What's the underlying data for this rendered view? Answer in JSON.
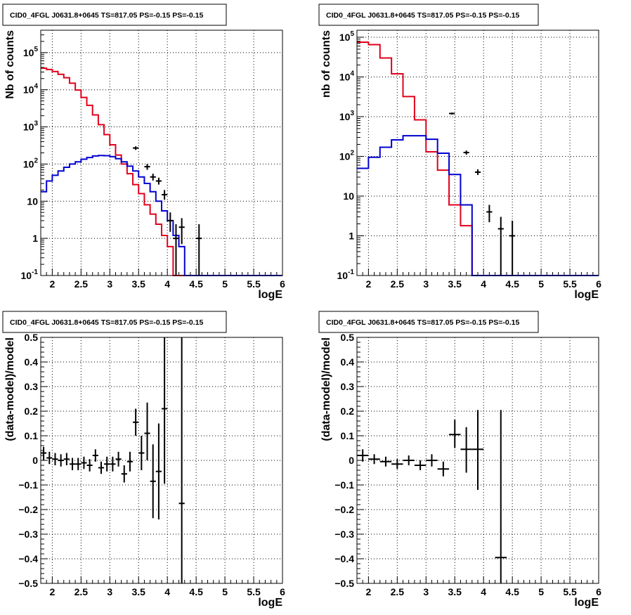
{
  "chart_data": [
    {
      "type": "line",
      "title": "CID0_4FGL J0631.8+0645 TS=817.05 PS=-0.15 PS=-0.15",
      "xlabel": "logE",
      "ylabel": "Nb of counts",
      "xlim": [
        1.8,
        6.0
      ],
      "ylim": [
        0.1,
        400000
      ],
      "yscale": "log",
      "grid": true,
      "x_ticks": [
        "2",
        "2.5",
        "3",
        "3.5",
        "4",
        "4.5",
        "5",
        "5.5",
        "6"
      ],
      "y_ticks": [
        "10^{-1}",
        "1",
        "10",
        "10^{2}",
        "10^{3}",
        "10^{4}",
        "10^{5}"
      ],
      "bin_edges": [
        1.8,
        1.9,
        2.0,
        2.1,
        2.2,
        2.3,
        2.4,
        2.5,
        2.6,
        2.7,
        2.8,
        2.9,
        3.0,
        3.1,
        3.2,
        3.3,
        3.4,
        3.5,
        3.6,
        3.7,
        3.8,
        3.9,
        4.0,
        4.1,
        4.2,
        4.3,
        4.4,
        4.5,
        4.6,
        4.7,
        4.8,
        4.9,
        5.0,
        5.1,
        5.2,
        5.3,
        5.4,
        5.5,
        5.6,
        5.7,
        5.8,
        5.9,
        6.0
      ],
      "series": [
        {
          "color": "#e0001b",
          "style": "step",
          "values": [
            38000,
            35000,
            31000,
            26000,
            21000,
            15000,
            9800,
            6200,
            3800,
            2100,
            1150,
            620,
            330,
            175,
            100,
            55,
            28,
            16,
            8,
            4.5,
            2.4,
            1.2,
            0.6,
            0.1,
            0.1,
            0.1,
            0.1,
            0.1,
            0.1,
            0.1,
            0.1,
            0.1,
            0.1,
            0.1,
            0.1,
            0.1,
            0.1,
            0.1,
            0.1,
            0.1,
            0.1,
            0.1
          ]
        },
        {
          "color": "#0000d0",
          "style": "step",
          "values": [
            18,
            35,
            50,
            65,
            82,
            100,
            115,
            135,
            150,
            165,
            170,
            168,
            158,
            140,
            115,
            88,
            65,
            45,
            30,
            18,
            10,
            5.5,
            3,
            1.2,
            0.6,
            0.1,
            0.1,
            0.1,
            0.1,
            0.1,
            0.1,
            0.1,
            0.1,
            0.1,
            0.1,
            0.1,
            0.1,
            0.1,
            0.1,
            0.1,
            0.1,
            0.1
          ]
        }
      ],
      "points": [
        {
          "x": 3.45,
          "y": 270,
          "ylo": 240,
          "yhi": 300
        },
        {
          "x": 3.65,
          "y": 85,
          "ylo": 70,
          "yhi": 100
        },
        {
          "x": 3.75,
          "y": 45,
          "ylo": 36,
          "yhi": 55
        },
        {
          "x": 3.85,
          "y": 35,
          "ylo": 28,
          "yhi": 43
        },
        {
          "x": 3.95,
          "y": 15,
          "ylo": 11,
          "yhi": 20
        },
        {
          "x": 4.05,
          "y": 3,
          "ylo": 1.5,
          "yhi": 5
        },
        {
          "x": 4.15,
          "y": 1,
          "ylo": 0.1,
          "yhi": 2.4
        },
        {
          "x": 4.25,
          "y": 2,
          "ylo": 0.7,
          "yhi": 3.5
        },
        {
          "x": 4.55,
          "y": 1,
          "ylo": 0.1,
          "yhi": 2.4
        }
      ]
    },
    {
      "type": "line",
      "title": "CID0_4FGL J0631.8+0645 TS=817.05 PS=-0.15 PS=-0.15",
      "xlabel": "logE",
      "ylabel": "nb of counts",
      "xlim": [
        1.8,
        6.0
      ],
      "ylim": [
        0.1,
        150000
      ],
      "yscale": "log",
      "grid": true,
      "x_ticks": [
        "2",
        "2.5",
        "3",
        "3.5",
        "4",
        "4.5",
        "5",
        "5.5",
        "6"
      ],
      "y_ticks": [
        "10^{-1}",
        "1",
        "10",
        "10^{2}",
        "10^{3}",
        "10^{4}",
        "10^{5}"
      ],
      "bin_edges": [
        1.8,
        2.0,
        2.2,
        2.4,
        2.6,
        2.8,
        3.0,
        3.2,
        3.4,
        3.6,
        3.8,
        4.0,
        4.2,
        4.4,
        4.6,
        4.8,
        5.0,
        5.2,
        5.4,
        5.6,
        5.8,
        6.0
      ],
      "series": [
        {
          "color": "#e0001b",
          "style": "step",
          "values": [
            75000,
            65000,
            30000,
            12000,
            3200,
            830,
            130,
            45,
            6,
            1.8,
            0.1,
            0.1,
            0.1,
            0.1,
            0.1,
            0.1,
            0.1,
            0.1,
            0.1,
            0.1,
            0.1
          ]
        },
        {
          "color": "#0000d0",
          "style": "step",
          "values": [
            50,
            95,
            170,
            260,
            330,
            330,
            270,
            120,
            35,
            6,
            0.1,
            0.1,
            0.1,
            0.1,
            0.1,
            0.1,
            0.1,
            0.1,
            0.1,
            0.1,
            0.1
          ]
        }
      ],
      "points": [
        {
          "x": 3.45,
          "y": 1200,
          "ylo": 1130,
          "yhi": 1270
        },
        {
          "x": 3.7,
          "y": 125,
          "ylo": 110,
          "yhi": 140
        },
        {
          "x": 3.9,
          "y": 40,
          "ylo": 34,
          "yhi": 47
        },
        {
          "x": 4.1,
          "y": 4,
          "ylo": 2.2,
          "yhi": 6
        },
        {
          "x": 4.3,
          "y": 1.5,
          "ylo": 0.1,
          "yhi": 3
        },
        {
          "x": 4.5,
          "y": 1,
          "ylo": 0.1,
          "yhi": 2.4
        }
      ]
    },
    {
      "type": "scatter",
      "title": "CID0_4FGL J0631.8+0645 TS=817.05 PS=-0.15 PS=-0.15",
      "xlabel": "logE",
      "ylabel": "(data-model)/model",
      "xlim": [
        1.8,
        6.0
      ],
      "ylim": [
        -0.5,
        0.5
      ],
      "grid": true,
      "x_ticks": [
        "2",
        "2.5",
        "3",
        "3.5",
        "4",
        "4.5",
        "5",
        "5.5",
        "6"
      ],
      "y_ticks": [
        "−0.5",
        "−0.4",
        "−0.3",
        "−0.2",
        "−0.1",
        "0",
        "0.1",
        "0.2",
        "0.3",
        "0.4",
        "0.5"
      ],
      "points": [
        {
          "x": 1.85,
          "y": 0.03,
          "ylo": 0.0,
          "yhi": 0.055,
          "xerr": 0.05
        },
        {
          "x": 1.95,
          "y": 0.01,
          "ylo": -0.015,
          "yhi": 0.035,
          "xerr": 0.05
        },
        {
          "x": 2.05,
          "y": 0.005,
          "ylo": -0.02,
          "yhi": 0.03,
          "xerr": 0.05
        },
        {
          "x": 2.15,
          "y": 0.0,
          "ylo": -0.025,
          "yhi": 0.025,
          "xerr": 0.05
        },
        {
          "x": 2.25,
          "y": 0.005,
          "ylo": -0.02,
          "yhi": 0.03,
          "xerr": 0.05
        },
        {
          "x": 2.35,
          "y": -0.015,
          "ylo": -0.04,
          "yhi": 0.01,
          "xerr": 0.05
        },
        {
          "x": 2.45,
          "y": -0.015,
          "ylo": -0.04,
          "yhi": 0.01,
          "xerr": 0.05
        },
        {
          "x": 2.55,
          "y": -0.01,
          "ylo": -0.035,
          "yhi": 0.015,
          "xerr": 0.05
        },
        {
          "x": 2.65,
          "y": -0.02,
          "ylo": -0.045,
          "yhi": 0.005,
          "xerr": 0.05
        },
        {
          "x": 2.75,
          "y": 0.02,
          "ylo": -0.005,
          "yhi": 0.045,
          "xerr": 0.05
        },
        {
          "x": 2.85,
          "y": -0.03,
          "ylo": -0.055,
          "yhi": -0.005,
          "xerr": 0.05
        },
        {
          "x": 2.95,
          "y": -0.015,
          "ylo": -0.045,
          "yhi": 0.015,
          "xerr": 0.05
        },
        {
          "x": 3.05,
          "y": -0.015,
          "ylo": -0.045,
          "yhi": 0.015,
          "xerr": 0.05
        },
        {
          "x": 3.15,
          "y": 0.005,
          "ylo": -0.025,
          "yhi": 0.035,
          "xerr": 0.05
        },
        {
          "x": 3.25,
          "y": -0.055,
          "ylo": -0.09,
          "yhi": -0.02,
          "xerr": 0.05
        },
        {
          "x": 3.35,
          "y": -0.005,
          "ylo": -0.045,
          "yhi": 0.035,
          "xerr": 0.05
        },
        {
          "x": 3.45,
          "y": 0.155,
          "ylo": 0.1,
          "yhi": 0.21,
          "xerr": 0.05
        },
        {
          "x": 3.55,
          "y": 0.03,
          "ylo": -0.04,
          "yhi": 0.1,
          "xerr": 0.05
        },
        {
          "x": 3.65,
          "y": 0.11,
          "ylo": 0.0,
          "yhi": 0.235,
          "xerr": 0.05
        },
        {
          "x": 3.75,
          "y": -0.085,
          "ylo": -0.235,
          "yhi": 0.065,
          "xerr": 0.05
        },
        {
          "x": 3.85,
          "y": -0.045,
          "ylo": -0.24,
          "yhi": 0.15,
          "xerr": 0.05
        },
        {
          "x": 3.95,
          "y": 0.21,
          "ylo": -0.095,
          "yhi": 0.5,
          "xerr": 0.05
        },
        {
          "x": 4.25,
          "y": -0.175,
          "ylo": -0.5,
          "yhi": 0.5,
          "xerr": 0.05
        }
      ]
    },
    {
      "type": "scatter",
      "title": "CID0_4FGL J0631.8+0645 TS=817.05 PS=-0.15 PS=-0.15",
      "xlabel": "logE",
      "ylabel": "(data-model)/model",
      "xlim": [
        1.8,
        6.0
      ],
      "ylim": [
        -0.5,
        0.5
      ],
      "grid": true,
      "x_ticks": [
        "2",
        "2.5",
        "3",
        "3.5",
        "4",
        "4.5",
        "5",
        "5.5",
        "6"
      ],
      "y_ticks": [
        "−0.5",
        "−0.4",
        "−0.3",
        "−0.2",
        "−0.1",
        "0",
        "0.1",
        "0.2",
        "0.3",
        "0.4",
        "0.5"
      ],
      "points": [
        {
          "x": 1.9,
          "y": 0.02,
          "ylo": -0.005,
          "yhi": 0.045,
          "xerr": 0.1
        },
        {
          "x": 2.1,
          "y": 0.005,
          "ylo": -0.015,
          "yhi": 0.025,
          "xerr": 0.1
        },
        {
          "x": 2.3,
          "y": -0.005,
          "ylo": -0.025,
          "yhi": 0.015,
          "xerr": 0.1
        },
        {
          "x": 2.5,
          "y": -0.015,
          "ylo": -0.035,
          "yhi": 0.005,
          "xerr": 0.1
        },
        {
          "x": 2.7,
          "y": 0.0,
          "ylo": -0.02,
          "yhi": 0.02,
          "xerr": 0.1
        },
        {
          "x": 2.9,
          "y": -0.02,
          "ylo": -0.04,
          "yhi": 0.0,
          "xerr": 0.1
        },
        {
          "x": 3.1,
          "y": 0.0,
          "ylo": -0.025,
          "yhi": 0.025,
          "xerr": 0.1
        },
        {
          "x": 3.3,
          "y": -0.035,
          "ylo": -0.065,
          "yhi": -0.005,
          "xerr": 0.1
        },
        {
          "x": 3.5,
          "y": 0.105,
          "ylo": 0.05,
          "yhi": 0.165,
          "xerr": 0.1
        },
        {
          "x": 3.7,
          "y": 0.045,
          "ylo": -0.05,
          "yhi": 0.135,
          "xerr": 0.1
        },
        {
          "x": 3.9,
          "y": 0.045,
          "ylo": -0.12,
          "yhi": 0.205,
          "xerr": 0.1
        },
        {
          "x": 4.3,
          "y": -0.395,
          "ylo": -0.5,
          "yhi": 0.205,
          "xerr": 0.1
        }
      ]
    }
  ]
}
